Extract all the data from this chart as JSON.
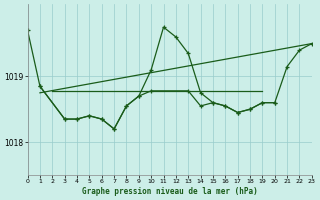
{
  "title": "Graphe pression niveau de la mer (hPa)",
  "background_color": "#cceee8",
  "grid_color": "#99cccc",
  "line_color": "#1a5c1a",
  "xlim": [
    0,
    23
  ],
  "ylim": [
    1017.5,
    1020.1
  ],
  "yticks": [
    1018,
    1019
  ],
  "xticks": [
    0,
    1,
    2,
    3,
    4,
    5,
    6,
    7,
    8,
    9,
    10,
    11,
    12,
    13,
    14,
    15,
    16,
    17,
    18,
    19,
    20,
    21,
    22,
    23
  ],
  "series_main": {
    "x": [
      0,
      1,
      3,
      4,
      5,
      6,
      7,
      8,
      9,
      10,
      11,
      12,
      13,
      14,
      15,
      16,
      17,
      18,
      19,
      20,
      21,
      22,
      23
    ],
    "y": [
      1019.7,
      1018.85,
      1018.35,
      1018.35,
      1018.4,
      1018.35,
      1018.2,
      1018.55,
      1018.7,
      1019.1,
      1019.75,
      1019.6,
      1019.35,
      1018.75,
      1018.6,
      1018.55,
      1018.45,
      1018.5,
      1018.6,
      1018.6,
      1019.15,
      1019.4,
      1019.5
    ]
  },
  "series_trend": {
    "x": [
      1,
      23
    ],
    "y": [
      1018.75,
      1019.5
    ]
  },
  "series_flat": {
    "x": [
      2,
      19
    ],
    "y": [
      1018.78,
      1018.78
    ]
  },
  "series_lower": {
    "x": [
      1,
      3,
      4,
      5,
      6,
      7,
      8,
      9,
      10,
      13,
      14,
      15,
      16,
      17,
      18,
      19,
      20
    ],
    "y": [
      1018.85,
      1018.35,
      1018.35,
      1018.4,
      1018.35,
      1018.2,
      1018.55,
      1018.7,
      1018.78,
      1018.78,
      1018.55,
      1018.6,
      1018.55,
      1018.45,
      1018.5,
      1018.6,
      1018.6
    ]
  }
}
